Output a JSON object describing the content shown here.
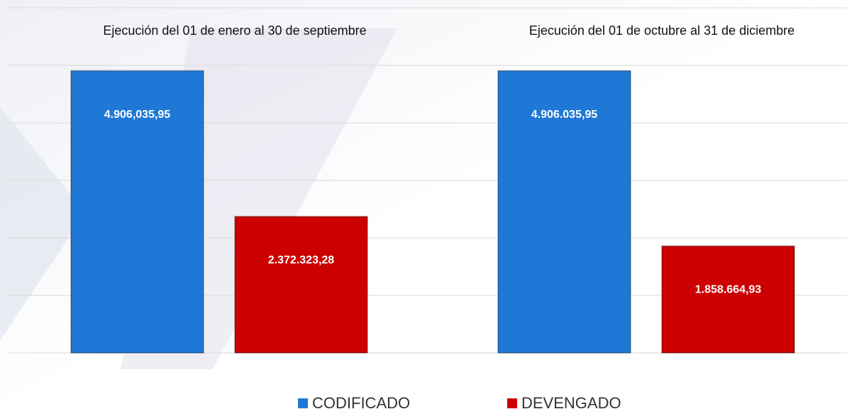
{
  "chart_data": {
    "type": "bar",
    "categories": [
      "Ejecución del 01 de enero al 30 de septiembre",
      "Ejecución del 01 de octubre al 31 de diciembre"
    ],
    "series": [
      {
        "name": "CODIFICADO",
        "color": "#1f78d6",
        "values": [
          4906035.95,
          4906035.95
        ],
        "value_labels": [
          "4.906,035,95",
          "4.906.035,95"
        ]
      },
      {
        "name": "DEVENGADO",
        "color": "#cc0000",
        "values": [
          2372323.28,
          1858664.93
        ],
        "value_labels": [
          "2.372.323,28",
          "1.858.664,93"
        ]
      }
    ],
    "ylim": [
      0,
      6000000
    ],
    "yticks": [
      0,
      1000000,
      2000000,
      3000000,
      4000000,
      5000000,
      6000000
    ],
    "grid": true
  }
}
